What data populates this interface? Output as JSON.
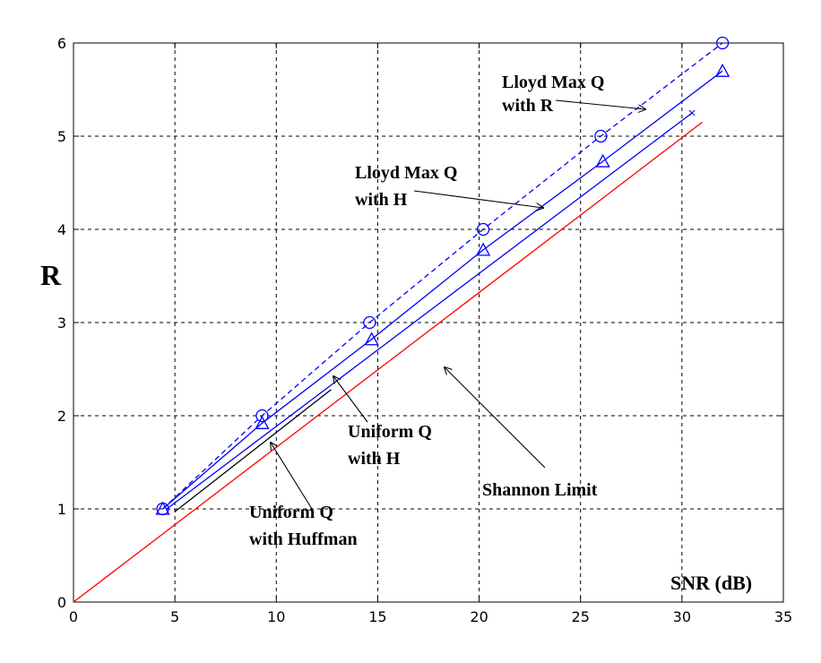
{
  "chart_data": {
    "type": "line",
    "xlabel": "SNR (dB)",
    "ylabel": "R",
    "xlim": [
      0,
      35
    ],
    "ylim": [
      0,
      6
    ],
    "xticks": [
      "0",
      "5",
      "10",
      "15",
      "20",
      "25",
      "30",
      "35"
    ],
    "yticks": [
      "0",
      "1",
      "2",
      "3",
      "4",
      "5",
      "6"
    ],
    "grid": true,
    "colors": {
      "blue": "#0000ff",
      "red": "#ff0000",
      "black": "#000000"
    },
    "series": [
      {
        "key": "lloyd_r",
        "style": "dashed",
        "color": "#0000ff",
        "marker": "circle",
        "points": [
          [
            4.4,
            1.0
          ],
          [
            9.3,
            2.0
          ],
          [
            14.6,
            3.0
          ],
          [
            20.2,
            4.0
          ],
          [
            26.0,
            5.0
          ],
          [
            32.0,
            6.0
          ]
        ]
      },
      {
        "key": "lloyd_h",
        "style": "solid",
        "color": "#0000ff",
        "marker": "triangle",
        "points": [
          [
            4.4,
            1.0
          ],
          [
            9.3,
            1.92
          ],
          [
            14.7,
            2.82
          ],
          [
            20.2,
            3.78
          ],
          [
            26.1,
            4.73
          ],
          [
            32.0,
            5.7
          ]
        ]
      },
      {
        "key": "uniform_h",
        "style": "solid",
        "color": "#0000ff",
        "marker": "none",
        "points": [
          [
            4.6,
            1.0
          ],
          [
            30.5,
            5.25
          ]
        ]
      },
      {
        "key": "uniform_huffman",
        "style": "solid",
        "color": "#000000",
        "marker": "none",
        "points": [
          [
            5.0,
            0.97
          ],
          [
            12.7,
            2.28
          ]
        ]
      },
      {
        "key": "shannon",
        "style": "solid",
        "color": "#ff0000",
        "marker": "none",
        "points": [
          [
            0,
            0
          ],
          [
            31.0,
            5.15
          ]
        ]
      }
    ],
    "annotations": [
      {
        "lines": [
          "Lloyd Max Q",
          "with R"
        ]
      },
      {
        "lines": [
          "Lloyd Max Q",
          "with H"
        ]
      },
      {
        "lines": [
          "Uniform Q",
          "with H"
        ]
      },
      {
        "lines": [
          "Uniform Q",
          "with Huffman"
        ]
      },
      {
        "lines": [
          "Shannon Limit"
        ]
      }
    ]
  }
}
